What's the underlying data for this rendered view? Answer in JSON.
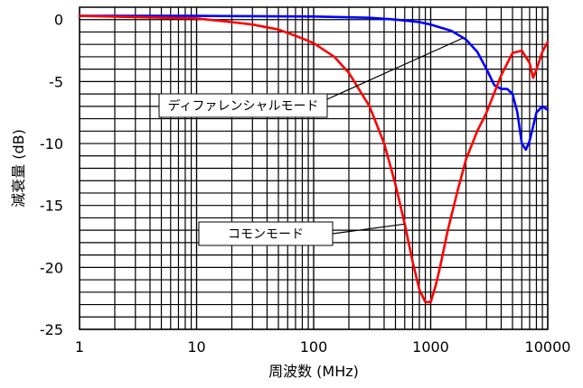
{
  "chart_data": {
    "type": "line",
    "title": "",
    "xlabel": "周波数 (MHz)",
    "ylabel": "減衰量 (dB)",
    "x_scale": "log",
    "xlim": [
      1,
      10000
    ],
    "ylim": [
      -25,
      1
    ],
    "grid": true,
    "x_ticks": [
      1,
      10,
      100,
      1000,
      10000
    ],
    "x_tick_labels": [
      "1",
      "10",
      "100",
      "1000",
      "10000"
    ],
    "y_ticks": [
      0,
      -5,
      -10,
      -15,
      -20,
      -25
    ],
    "y_tick_labels": [
      "0",
      "-5",
      "-10",
      "-15",
      "-20",
      "-25"
    ],
    "series": [
      {
        "name": "ディファレンシャルモード",
        "color": "#0000ff",
        "x": [
          1,
          10,
          100,
          300,
          500,
          800,
          1000,
          1500,
          2000,
          2500,
          3000,
          3500,
          4000,
          4500,
          5000,
          5500,
          6000,
          6500,
          7000,
          8000,
          9000,
          10000
        ],
        "y": [
          0.3,
          0.3,
          0.25,
          0.15,
          0.0,
          -0.2,
          -0.4,
          -0.9,
          -1.6,
          -2.6,
          -4.0,
          -5.3,
          -5.6,
          -5.6,
          -6.0,
          -7.5,
          -10.0,
          -10.5,
          -9.8,
          -7.5,
          -7.0,
          -7.3
        ]
      },
      {
        "name": "コモンモード",
        "color": "#ff0000",
        "x": [
          1,
          10,
          20,
          30,
          50,
          70,
          100,
          150,
          200,
          300,
          400,
          500,
          600,
          700,
          800,
          900,
          1000,
          1100,
          1200,
          1400,
          1700,
          2000,
          2500,
          3000,
          4000,
          5000,
          6000,
          7000,
          7500,
          8000,
          9000,
          10000
        ],
        "y": [
          0.3,
          0.1,
          -0.2,
          -0.4,
          -0.8,
          -1.3,
          -1.9,
          -3.0,
          -4.3,
          -7.0,
          -10.0,
          -13.3,
          -16.5,
          -19.5,
          -21.8,
          -22.8,
          -22.8,
          -21.5,
          -20.0,
          -17.0,
          -13.8,
          -11.3,
          -9.0,
          -7.5,
          -4.5,
          -2.7,
          -2.5,
          -3.5,
          -4.7,
          -4.0,
          -2.6,
          -1.8
        ]
      }
    ],
    "annotations": [
      {
        "text": "ディファレンシャルモード",
        "series": "ディファレンシャルモード"
      },
      {
        "text": "コモンモード",
        "series": "コモンモード"
      }
    ]
  }
}
